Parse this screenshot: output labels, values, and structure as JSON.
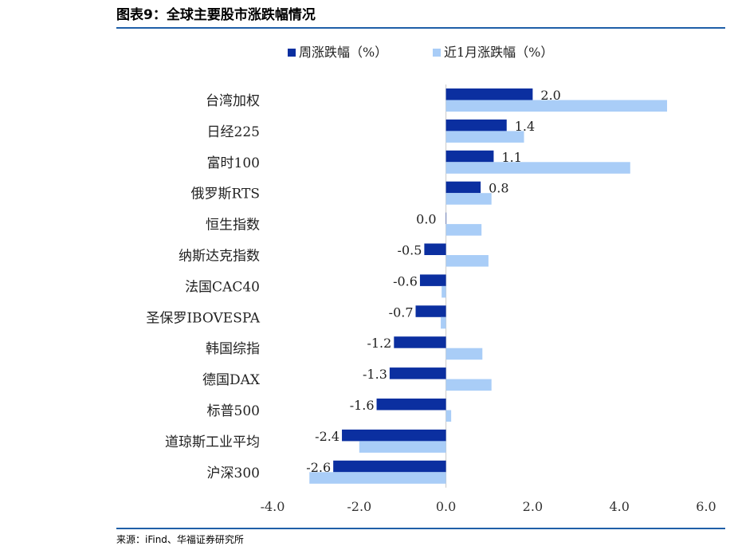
{
  "figure_title": "图表9：全球主要股市涨跌幅情况",
  "source": "来源：iFind、华福证券研究所",
  "chart_data": {
    "type": "bar",
    "orientation": "horizontal",
    "categories": [
      "台湾加权",
      "日经225",
      "富时100",
      "俄罗斯RTS",
      "恒生指数",
      "纳斯达克指数",
      "法国CAC40",
      "圣保罗IBOVESPA",
      "韩国综指",
      "德国DAX",
      "标普500",
      "道琼斯工业平均",
      "沪深300"
    ],
    "series": [
      {
        "name": "周涨跌幅（%）",
        "color": "#0b2fa0",
        "values": [
          2.0,
          1.4,
          1.1,
          0.8,
          0.0,
          -0.5,
          -0.6,
          -0.7,
          -1.2,
          -1.3,
          -1.6,
          -2.4,
          -2.6
        ],
        "labels": [
          "2.0",
          "1.4",
          "1.1",
          "0.8",
          "0.0",
          "-0.5",
          "-0.6",
          "-0.7",
          "-1.2",
          "-1.3",
          "-1.6",
          "-2.4",
          "-2.6"
        ]
      },
      {
        "name": "近1月涨跌幅（%）",
        "color": "#a9cdf7",
        "values": [
          5.1,
          1.8,
          4.25,
          1.05,
          0.82,
          0.98,
          -0.1,
          -0.12,
          0.84,
          1.05,
          0.12,
          -2.0,
          -3.15
        ]
      }
    ],
    "xlim": [
      -4.0,
      6.0
    ],
    "xticks": [
      -4.0,
      -2.0,
      0.0,
      2.0,
      4.0,
      6.0
    ],
    "xtick_labels": [
      "-4.0",
      "-2.0",
      "0.0",
      "2.0",
      "4.0",
      "6.0"
    ],
    "legend_position": "top-center",
    "grid": false
  }
}
